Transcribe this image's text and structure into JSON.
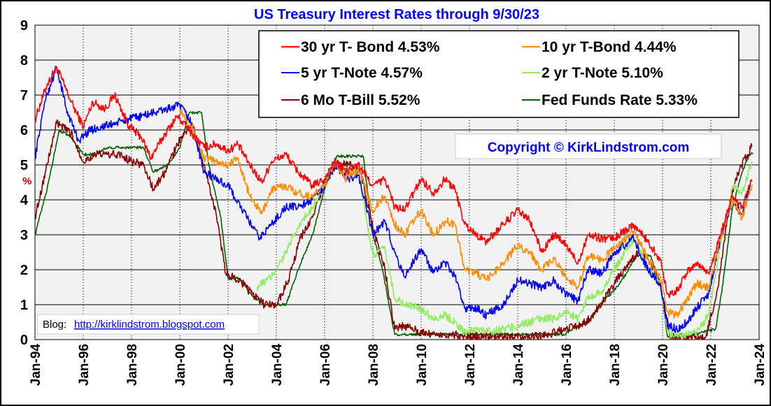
{
  "chart_data": {
    "type": "line",
    "title": "US Treasury Interest Rates through 9/30/23",
    "ylabel": "%",
    "ylim": [
      0,
      9
    ],
    "yticks": [
      "0",
      "1",
      "2",
      "3",
      "4",
      "5",
      "6",
      "7",
      "8",
      "9"
    ],
    "xlim": [
      1994.0,
      2024.0
    ],
    "xticks": [
      "Jan-94",
      "Jan-96",
      "Jan-98",
      "Jan-00",
      "Jan-02",
      "Jan-04",
      "Jan-06",
      "Jan-08",
      "Jan-10",
      "Jan-12",
      "Jan-14",
      "Jan-16",
      "Jan-18",
      "Jan-20",
      "Jan-22",
      "Jan-24"
    ],
    "grid": true,
    "legend_position": "top-right",
    "copyright": "Copyright ©  KirkLindstrom.com",
    "blog_label": "Blog:",
    "blog_link": "http://kirklindstrom.blogspot.com",
    "series": [
      {
        "name": "30 yr T- Bond 4.53%",
        "color": "#ff0000",
        "x": [
          1994.0,
          1994.5,
          1994.9,
          1995.5,
          1996.0,
          1996.4,
          1996.9,
          1997.3,
          1997.9,
          1998.4,
          1998.8,
          1999.4,
          1999.9,
          2000.5,
          2001.0,
          2001.5,
          2002.0,
          2002.4,
          2002.9,
          2003.4,
          2003.8,
          2004.4,
          2004.9,
          2005.5,
          2006.0,
          2006.4,
          2006.9,
          2007.4,
          2008.0,
          2008.5,
          2008.9,
          2009.3,
          2010.0,
          2010.5,
          2011.0,
          2011.4,
          2011.8,
          2012.3,
          2012.7,
          2013.4,
          2014.0,
          2014.5,
          2015.0,
          2015.5,
          2016.0,
          2016.5,
          2016.9,
          2017.5,
          2018.0,
          2018.8,
          2019.4,
          2019.9,
          2020.2,
          2020.6,
          2021.0,
          2021.4,
          2021.9,
          2022.4,
          2022.9,
          2023.3,
          2023.7
        ],
        "values": [
          6.3,
          7.3,
          7.8,
          6.8,
          6.1,
          6.8,
          6.6,
          7.0,
          6.1,
          5.8,
          5.2,
          5.9,
          6.4,
          5.9,
          5.5,
          5.6,
          5.4,
          5.6,
          5.0,
          4.5,
          5.1,
          5.3,
          4.8,
          4.4,
          4.6,
          5.1,
          4.8,
          5.0,
          4.4,
          4.6,
          3.8,
          3.7,
          4.6,
          4.2,
          4.6,
          4.3,
          3.3,
          3.0,
          2.8,
          3.3,
          3.7,
          3.4,
          2.5,
          3.0,
          2.7,
          2.2,
          3.0,
          2.9,
          2.9,
          3.3,
          2.8,
          2.3,
          1.3,
          1.4,
          1.9,
          2.2,
          1.9,
          3.0,
          4.1,
          3.8,
          4.53
        ]
      },
      {
        "name": "10 yr T-Bond 4.44%",
        "color": "#ff8c00",
        "x": [
          2000.0,
          2000.5,
          2001.0,
          2001.5,
          2002.0,
          2002.4,
          2002.9,
          2003.4,
          2003.8,
          2004.4,
          2004.9,
          2005.5,
          2006.0,
          2006.4,
          2006.9,
          2007.4,
          2008.0,
          2008.5,
          2008.9,
          2009.3,
          2010.0,
          2010.5,
          2011.0,
          2011.4,
          2011.8,
          2012.3,
          2012.7,
          2013.4,
          2014.0,
          2014.5,
          2015.0,
          2015.5,
          2016.0,
          2016.5,
          2016.9,
          2017.5,
          2018.0,
          2018.8,
          2019.4,
          2019.9,
          2020.2,
          2020.6,
          2021.0,
          2021.4,
          2021.9,
          2022.4,
          2022.9,
          2023.3,
          2023.7
        ],
        "values": [
          6.6,
          6.1,
          5.2,
          5.1,
          5.0,
          5.2,
          4.1,
          3.6,
          4.3,
          4.4,
          4.2,
          4.1,
          4.4,
          5.1,
          4.6,
          4.9,
          3.7,
          4.1,
          3.3,
          3.0,
          3.7,
          3.0,
          3.4,
          3.3,
          2.0,
          1.9,
          1.7,
          2.2,
          2.7,
          2.5,
          2.0,
          2.3,
          1.8,
          1.5,
          2.4,
          2.3,
          2.6,
          3.1,
          2.3,
          1.8,
          0.8,
          0.7,
          1.1,
          1.6,
          1.5,
          2.9,
          4.0,
          3.5,
          4.44
        ]
      },
      {
        "name": "5 yr T-Note 4.57%",
        "color": "#0000ff",
        "x": [
          1994.0,
          1994.4,
          1994.9,
          1995.3,
          1995.8,
          1996.3,
          2000.0,
          2000.5,
          2001.0,
          2001.5,
          2002.0,
          2003.3,
          2003.8,
          2004.4,
          2004.9,
          2005.5,
          2006.0,
          2006.4,
          2006.9,
          2007.4,
          2008.0,
          2008.5,
          2008.9,
          2009.3,
          2010.0,
          2010.5,
          2011.0,
          2011.4,
          2011.8,
          2012.3,
          2012.7,
          2013.4,
          2014.0,
          2014.5,
          2015.0,
          2015.5,
          2016.0,
          2016.5,
          2016.9,
          2017.5,
          2018.0,
          2018.8,
          2019.4,
          2019.9,
          2020.2,
          2020.6,
          2021.0,
          2021.4,
          2021.9,
          2022.4,
          2022.9,
          2023.3,
          2023.7
        ],
        "values": [
          5.2,
          6.8,
          7.8,
          6.6,
          5.7,
          6.0,
          6.7,
          6.2,
          4.8,
          4.6,
          4.4,
          2.9,
          3.3,
          3.8,
          3.8,
          4.0,
          4.4,
          5.0,
          4.6,
          4.7,
          3.0,
          3.4,
          2.5,
          1.8,
          2.6,
          1.9,
          2.2,
          1.8,
          0.9,
          0.9,
          0.7,
          1.0,
          1.7,
          1.6,
          1.5,
          1.7,
          1.3,
          1.1,
          2.0,
          1.9,
          2.5,
          2.9,
          2.0,
          1.6,
          0.4,
          0.3,
          0.5,
          0.9,
          1.3,
          2.9,
          4.0,
          3.6,
          4.57
        ]
      },
      {
        "name": "2 yr T-Note 5.10%",
        "color": "#90ee60",
        "x": [
          2003.2,
          2003.8,
          2004.4,
          2004.9,
          2005.5,
          2006.0,
          2006.4,
          2006.9,
          2007.4,
          2008.0,
          2008.5,
          2008.9,
          2009.3,
          2010.0,
          2010.5,
          2011.0,
          2011.4,
          2011.8,
          2012.3,
          2012.7,
          2013.4,
          2014.0,
          2014.5,
          2015.0,
          2015.5,
          2016.0,
          2016.5,
          2016.9,
          2017.5,
          2018.0,
          2018.8,
          2019.4,
          2019.9,
          2020.2,
          2020.6,
          2021.0,
          2021.4,
          2021.9,
          2022.4,
          2022.9,
          2023.3,
          2023.7
        ],
        "values": [
          1.5,
          1.8,
          2.5,
          3.2,
          3.8,
          4.4,
          5.0,
          4.8,
          4.8,
          2.4,
          2.6,
          1.2,
          1.0,
          0.9,
          0.6,
          0.7,
          0.5,
          0.2,
          0.3,
          0.25,
          0.3,
          0.4,
          0.5,
          0.6,
          0.6,
          0.8,
          0.6,
          1.2,
          1.4,
          2.0,
          2.9,
          2.0,
          1.6,
          0.2,
          0.15,
          0.13,
          0.2,
          0.7,
          2.7,
          4.4,
          4.2,
          5.1
        ]
      },
      {
        "name": "6 Mo T-Bill 5.52%",
        "color": "#8b0000",
        "x": [
          1994.0,
          1994.5,
          1994.9,
          1995.5,
          1996.0,
          1996.5,
          1997.0,
          1997.5,
          1998.0,
          1998.5,
          1998.9,
          1999.4,
          1999.9,
          2000.5,
          2001.0,
          2001.5,
          2001.9,
          2002.5,
          2003.0,
          2003.5,
          2004.0,
          2004.5,
          2005.0,
          2005.5,
          2006.0,
          2006.5,
          2007.0,
          2007.5,
          2008.0,
          2008.5,
          2008.9,
          2009.3,
          2010.0,
          2011.0,
          2012.0,
          2013.0,
          2014.0,
          2015.0,
          2015.9,
          2016.5,
          2017.0,
          2017.5,
          2018.0,
          2018.5,
          2019.0,
          2019.4,
          2019.9,
          2020.1,
          2020.3,
          2021.0,
          2021.8,
          2022.3,
          2022.8,
          2023.2,
          2023.7
        ],
        "values": [
          3.5,
          5.0,
          6.2,
          5.9,
          5.1,
          5.3,
          5.3,
          5.3,
          5.1,
          5.0,
          4.3,
          4.8,
          5.6,
          6.2,
          5.0,
          3.6,
          1.9,
          1.7,
          1.3,
          1.0,
          1.0,
          1.7,
          2.9,
          3.5,
          4.5,
          5.0,
          5.0,
          4.8,
          3.2,
          2.0,
          0.3,
          0.4,
          0.2,
          0.15,
          0.1,
          0.1,
          0.05,
          0.1,
          0.3,
          0.4,
          0.6,
          1.1,
          1.6,
          2.1,
          2.5,
          2.3,
          1.6,
          0.9,
          0.1,
          0.05,
          0.1,
          1.5,
          4.0,
          4.9,
          5.52
        ]
      },
      {
        "name": "Fed Funds Rate 5.33%",
        "color": "#006400",
        "x": [
          1994.0,
          1994.5,
          1995.0,
          1995.5,
          1996.0,
          1996.5,
          1997.0,
          1997.5,
          1998.0,
          1998.5,
          1998.9,
          1999.5,
          2000.0,
          2000.4,
          2000.9,
          2001.2,
          2001.7,
          2002.0,
          2002.5,
          2003.0,
          2003.5,
          2004.4,
          2004.9,
          2005.5,
          2006.0,
          2006.5,
          2007.0,
          2007.6,
          2008.0,
          2008.4,
          2008.9,
          2009.5,
          2012.0,
          2015.9,
          2016.5,
          2016.9,
          2017.5,
          2018.0,
          2018.5,
          2018.9,
          2019.5,
          2019.9,
          2020.2,
          2021.0,
          2022.2,
          2022.5,
          2022.9,
          2023.3,
          2023.6,
          2023.75
        ],
        "values": [
          3.0,
          4.3,
          6.0,
          5.8,
          5.3,
          5.3,
          5.5,
          5.5,
          5.5,
          5.5,
          4.8,
          5.0,
          5.5,
          6.5,
          6.5,
          5.0,
          3.5,
          1.75,
          1.75,
          1.25,
          1.0,
          1.0,
          2.0,
          3.0,
          4.3,
          5.25,
          5.25,
          5.25,
          3.0,
          2.0,
          0.15,
          0.15,
          0.15,
          0.15,
          0.4,
          0.5,
          1.1,
          1.4,
          1.9,
          2.4,
          2.4,
          1.6,
          0.1,
          0.1,
          0.3,
          1.6,
          3.8,
          4.8,
          5.3,
          5.33
        ]
      }
    ]
  }
}
